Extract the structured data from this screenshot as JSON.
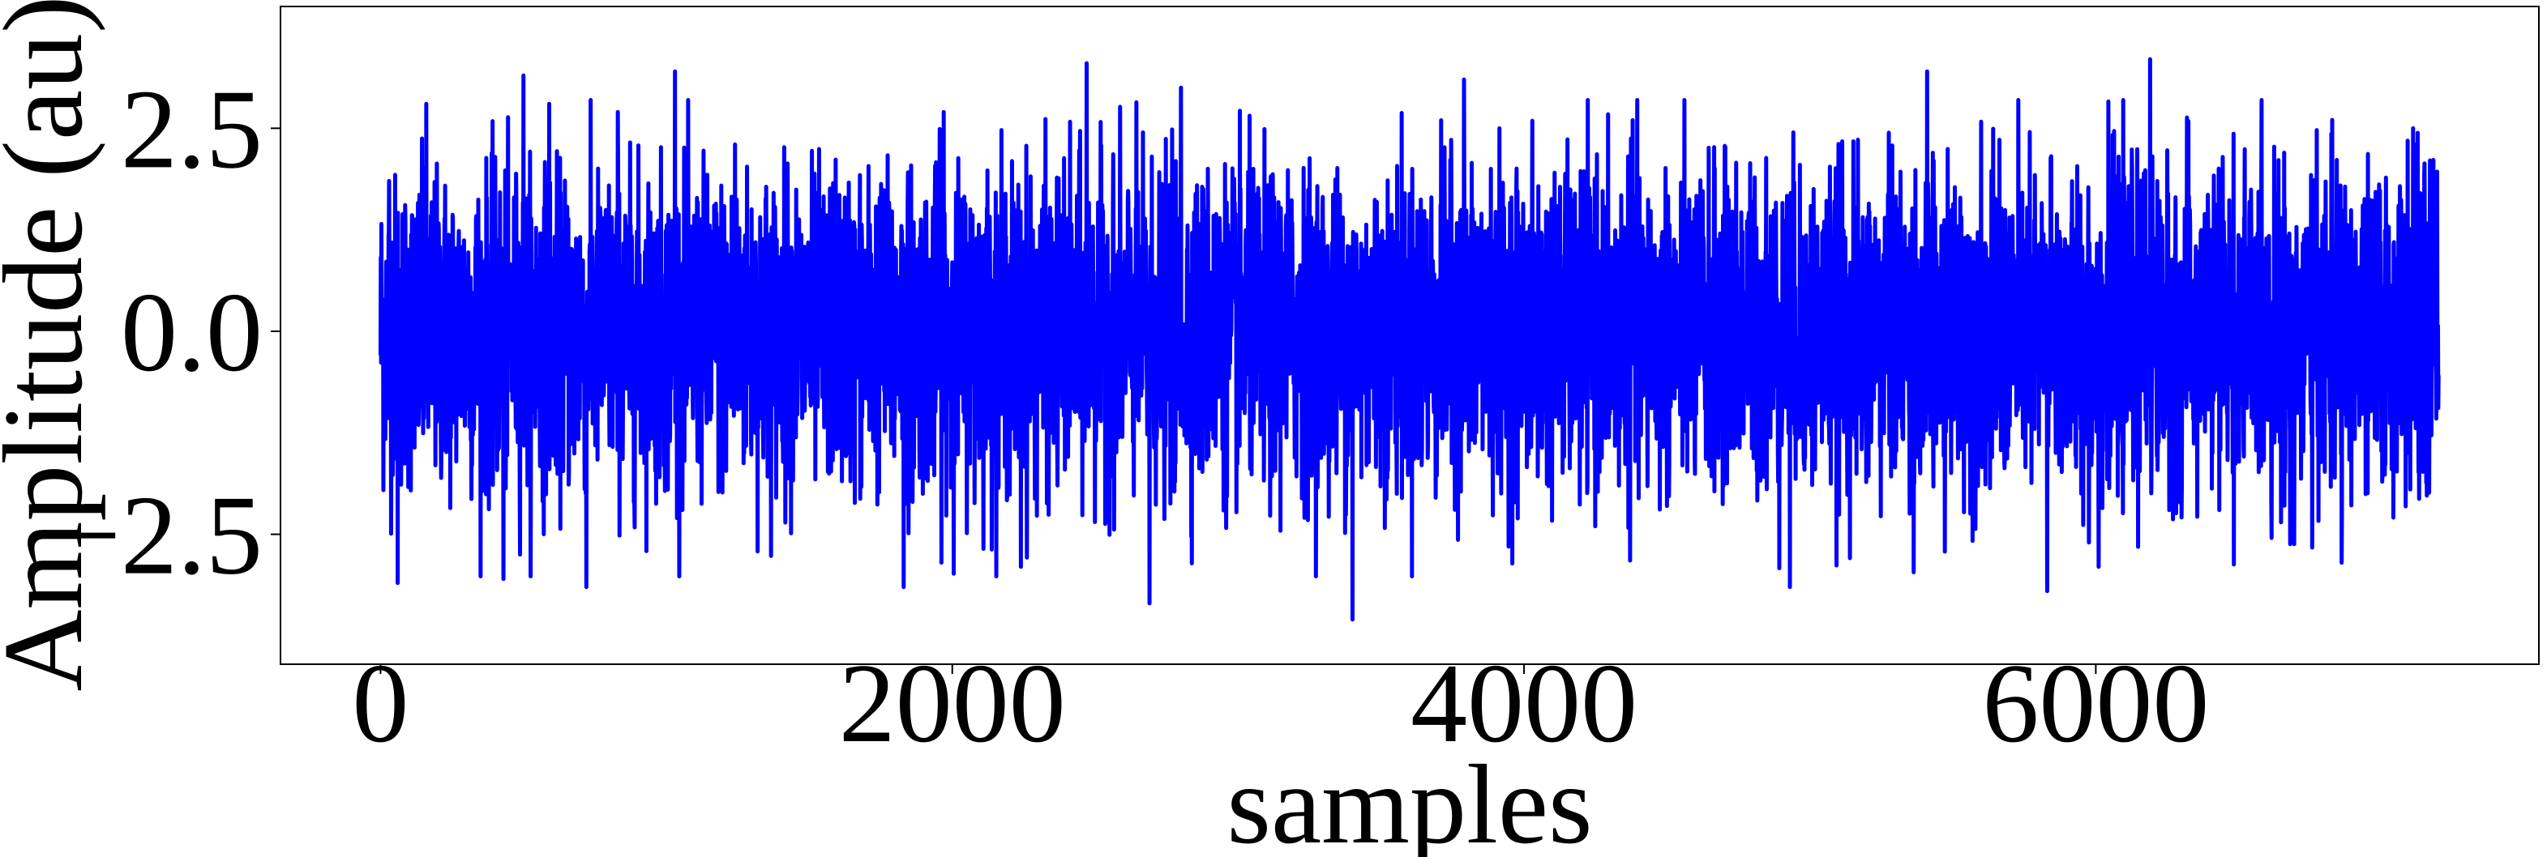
{
  "chart_data": {
    "type": "line",
    "title": "",
    "xlabel": "samples",
    "ylabel": "Amplitude (au)",
    "xlim": [
      -350,
      7550
    ],
    "ylim": [
      -4.1,
      4.0
    ],
    "x_ticks": [
      0,
      2000,
      4000,
      6000
    ],
    "x_tick_labels": [
      "0",
      "2000",
      "4000",
      "6000"
    ],
    "y_ticks": [
      2.5,
      0.0,
      -2.5
    ],
    "y_tick_labels": [
      "2.5",
      "0.0",
      "−2.5"
    ],
    "grid": false,
    "legend": "none",
    "n_samples": 7200,
    "series": [
      {
        "color": "#0000ff",
        "style": "noise",
        "envelope_min": -3.55,
        "envelope_max": 3.35,
        "peaks": [
          {
            "x": 30,
            "y": 1.85
          },
          {
            "x": 60,
            "y": -3.1
          },
          {
            "x": 160,
            "y": 2.8
          },
          {
            "x": 430,
            "y": -3.05
          },
          {
            "x": 500,
            "y": 3.15
          },
          {
            "x": 590,
            "y": 2.8
          },
          {
            "x": 720,
            "y": -3.15
          },
          {
            "x": 830,
            "y": 2.7
          },
          {
            "x": 1030,
            "y": 3.2
          },
          {
            "x": 1240,
            "y": 2.3
          },
          {
            "x": 1830,
            "y": -3.15
          },
          {
            "x": 1970,
            "y": 2.7
          },
          {
            "x": 2240,
            "y": -2.9
          },
          {
            "x": 2470,
            "y": 3.3
          },
          {
            "x": 2690,
            "y": -3.35
          },
          {
            "x": 2800,
            "y": 3.0
          },
          {
            "x": 3400,
            "y": -3.55
          },
          {
            "x": 3790,
            "y": 3.1
          },
          {
            "x": 4380,
            "y": 2.6
          },
          {
            "x": 4930,
            "y": -3.15
          },
          {
            "x": 5410,
            "y": 3.2
          },
          {
            "x": 5830,
            "y": -3.2
          },
          {
            "x": 6010,
            "y": -2.9
          },
          {
            "x": 6190,
            "y": 3.35
          },
          {
            "x": 6860,
            "y": -2.85
          },
          {
            "x": 7110,
            "y": 2.5
          }
        ]
      }
    ]
  }
}
